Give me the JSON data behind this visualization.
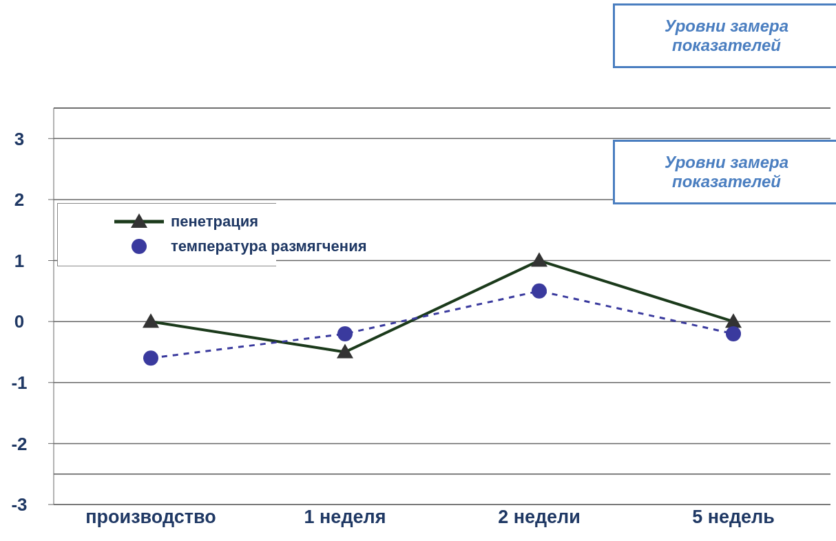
{
  "chart_data": {
    "type": "line",
    "categories": [
      "производство",
      "1 неделя",
      "2 недели",
      "5 недель"
    ],
    "series": [
      {
        "name": "пенетрация",
        "color": "#1b3a1b",
        "marker": "triangle",
        "line_style": "solid",
        "values": [
          0,
          -0.5,
          1,
          0
        ]
      },
      {
        "name": "температура размягчения",
        "color": "#3a3a9e",
        "marker": "circle",
        "line_style": "dashed",
        "values": [
          -0.6,
          -0.2,
          0.5,
          -0.2
        ]
      }
    ],
    "ylim": [
      -3,
      3.5
    ],
    "yticks": [
      -3,
      -2,
      -1,
      0,
      1,
      2,
      3
    ],
    "grid": "y",
    "legend": "top left",
    "ref_lines": [
      {
        "axis": "y",
        "value": -2.5,
        "label": null,
        "color": "#555555"
      }
    ],
    "annotations": [
      "Уровни замера показателей",
      "Уровни замера показателей"
    ]
  }
}
